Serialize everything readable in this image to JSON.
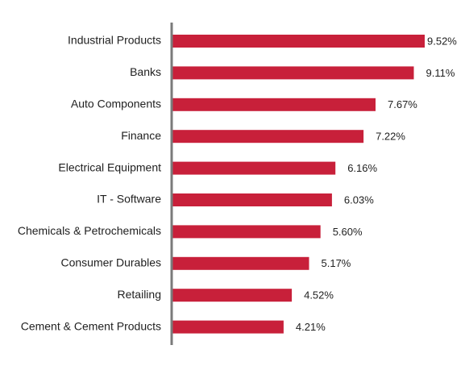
{
  "colors": {
    "bar": "#c8203a",
    "axis": "#7a7a7a",
    "text": "#1f1f1f",
    "background": "#ffffff"
  },
  "chart_data": {
    "type": "bar",
    "orientation": "horizontal",
    "categories": [
      "Industrial Products",
      "Banks",
      "Auto Components",
      "Finance",
      "Electrical Equipment",
      "IT - Software",
      "Chemicals & Petrochemicals",
      "Consumer Durables",
      "Retailing",
      "Cement & Cement Products"
    ],
    "values": [
      9.52,
      9.11,
      7.67,
      7.22,
      6.16,
      6.03,
      5.6,
      5.17,
      4.52,
      4.21
    ],
    "value_labels": [
      "9.52%",
      "9.11%",
      "7.67%",
      "7.22%",
      "6.16%",
      "6.03%",
      "5.60%",
      "5.17%",
      "4.52%",
      "4.21%"
    ],
    "unit": "%",
    "title": "",
    "xlabel": "",
    "ylabel": "",
    "xlim": [
      0,
      9.52
    ],
    "grid": false,
    "legend": "none"
  }
}
